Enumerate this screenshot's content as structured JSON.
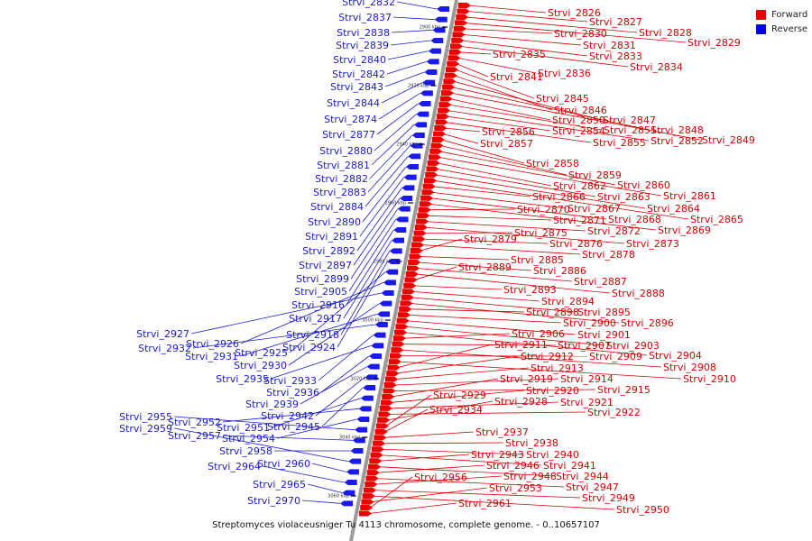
{
  "caption": "Streptomyces violaceusniger Tu 4113 chromosome, complete genome. - 0..10657107",
  "legend": [
    {
      "label": "Forward",
      "color": "#ee0000"
    },
    {
      "label": "Reverse",
      "color": "#0000ee"
    }
  ],
  "colors": {
    "forward": "#ee0000",
    "reverse": "#1a1aee",
    "forward_text": "#d40000",
    "reverse_text": "#1a1acc"
  },
  "scale_marks": [
    "2900 kbp",
    "2920 kbp",
    "2940 kbp",
    "2960 kbp",
    "2980 kbp",
    "3000 kbp",
    "3020 kbp",
    "3040 kbp",
    "3060 kbp"
  ],
  "forward_genes": [
    "Strvi_2826",
    "Strvi_2827",
    "Strvi_2828",
    "Strvi_2829",
    "Strvi_2830",
    "Strvi_2831",
    "Strvi_2833",
    "Strvi_2834",
    "Strvi_2835",
    "Strvi_2836",
    "Strvi_2841",
    "Strvi_2845",
    "Strvi_2846",
    "Strvi_2847",
    "Strvi_2848",
    "Strvi_2849",
    "Strvi_2850",
    "Strvi_2851",
    "Strvi_2852",
    "Strvi_2854",
    "Strvi_2855",
    "Strvi_2856",
    "Strvi_2857",
    "Strvi_2858",
    "Strvi_2859",
    "Strvi_2860",
    "Strvi_2861",
    "Strvi_2862",
    "Strvi_2863",
    "Strvi_2864",
    "Strvi_2865",
    "Strvi_2866",
    "Strvi_2867",
    "Strvi_2868",
    "Strvi_2869",
    "Strvi_2870",
    "Strvi_2871",
    "Strvi_2872",
    "Strvi_2873",
    "Strvi_2875",
    "Strvi_2876",
    "Strvi_2878",
    "Strvi_2879",
    "Strvi_2885",
    "Strvi_2886",
    "Strvi_2887",
    "Strvi_2888",
    "Strvi_2889",
    "Strvi_2893",
    "Strvi_2894",
    "Strvi_2895",
    "Strvi_2896",
    "Strvi_2898",
    "Strvi_2900",
    "Strvi_2901",
    "Strvi_2903",
    "Strvi_2904",
    "Strvi_2906",
    "Strvi_2907",
    "Strvi_2908",
    "Strvi_2909",
    "Strvi_2910",
    "Strvi_2911",
    "Strvi_2912",
    "Strvi_2913",
    "Strvi_2914",
    "Strvi_2915",
    "Strvi_2919",
    "Strvi_2920",
    "Strvi_2921",
    "Strvi_2922",
    "Strvi_2928",
    "Strvi_2929",
    "Strvi_2934",
    "Strvi_2937",
    "Strvi_2938",
    "Strvi_2940",
    "Strvi_2941",
    "Strvi_2943",
    "Strvi_2944",
    "Strvi_2946",
    "Strvi_2947",
    "Strvi_2948",
    "Strvi_2949",
    "Strvi_2950",
    "Strvi_2953",
    "Strvi_2956",
    "Strvi_2961"
  ],
  "reverse_genes": [
    "Strvi_2832",
    "Strvi_2837",
    "Strvi_2838",
    "Strvi_2839",
    "Strvi_2840",
    "Strvi_2842",
    "Strvi_2843",
    "Strvi_2844",
    "Strvi_2874",
    "Strvi_2877",
    "Strvi_2880",
    "Strvi_2881",
    "Strvi_2882",
    "Strvi_2883",
    "Strvi_2884",
    "Strvi_2890",
    "Strvi_2891",
    "Strvi_2892",
    "Strvi_2897",
    "Strvi_2899",
    "Strvi_2905",
    "Strvi_2916",
    "Strvi_2917",
    "Strvi_2918",
    "Strvi_2924",
    "Strvi_2925",
    "Strvi_2926",
    "Strvi_2927",
    "Strvi_2930",
    "Strvi_2931",
    "Strvi_2932",
    "Strvi_2933",
    "Strvi_2935",
    "Strvi_2936",
    "Strvi_2939",
    "Strvi_2942",
    "Strvi_2945",
    "Strvi_2951",
    "Strvi_2952",
    "Strvi_2954",
    "Strvi_2955",
    "Strvi_2957",
    "Strvi_2958",
    "Strvi_2959",
    "Strvi_2960",
    "Strvi_2964",
    "Strvi_2965",
    "Strvi_2970"
  ]
}
